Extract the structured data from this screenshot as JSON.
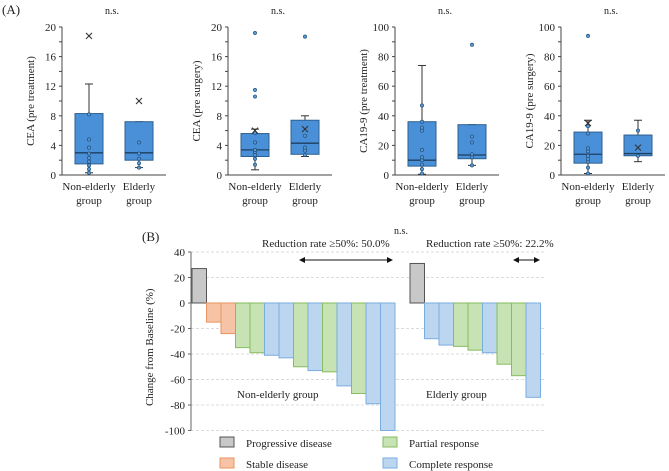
{
  "panel_a_label": "(A)",
  "panel_b_label": "(B)",
  "colors": {
    "box_fill": "#4a90d9",
    "box_stroke": "#2d5f8e",
    "point": "#3a78b8",
    "progressive": "#c8c8c8",
    "progressive_stroke": "#555555",
    "stable": "#f6c3a6",
    "stable_stroke": "#e8955f",
    "partial": "#c7e3b4",
    "partial_stroke": "#86bd5f",
    "complete": "#bcd6ef",
    "complete_stroke": "#7aaee0"
  },
  "chart_data": [
    {
      "type": "box",
      "title": "n.s.",
      "ylabel": "CEA (pre treatment)",
      "ylim": [
        0,
        20
      ],
      "yticks": [
        0,
        4,
        8,
        12,
        16,
        20
      ],
      "categories": [
        "Non-elderly group",
        "Elderly group"
      ],
      "category_lines": [
        [
          "Non-elderly",
          "group"
        ],
        [
          "Elderly",
          "group"
        ]
      ],
      "boxes": [
        {
          "min": 0.3,
          "q1": 1.5,
          "median": 3.0,
          "q3": 8.3,
          "max": 12.3,
          "mean": 18.8,
          "points": [
            0.3,
            0.8,
            1.3,
            1.8,
            2.3,
            2.9,
            3.7,
            4.8,
            8.2
          ]
        },
        {
          "min": 1.0,
          "q1": 2.0,
          "median": 3.0,
          "q3": 7.2,
          "max": 7.2,
          "mean": 10.0,
          "points": [
            1.0,
            1.6,
            2.2,
            2.9,
            4.4
          ]
        }
      ]
    },
    {
      "type": "box",
      "title": "n.s.",
      "ylabel": "CEA (pre surgery)",
      "ylim": [
        0,
        20
      ],
      "yticks": [
        0,
        4,
        8,
        12,
        16,
        20
      ],
      "categories": [
        "Non-elderly group",
        "Elderly group"
      ],
      "category_lines": [
        [
          "Non-elderly",
          "group"
        ],
        [
          "Elderly",
          "group"
        ]
      ],
      "boxes": [
        {
          "min": 0.7,
          "q1": 2.5,
          "median": 3.4,
          "q3": 5.6,
          "max": 6.2,
          "mean": 6.0,
          "points": [
            1.4,
            2.2,
            2.7,
            3.1,
            3.4,
            4.4,
            5.7,
            10.6,
            11.5,
            19.2
          ]
        },
        {
          "min": 2.5,
          "q1": 2.8,
          "median": 4.3,
          "q3": 7.4,
          "max": 8.0,
          "mean": 6.2,
          "points": [
            2.7,
            3.3,
            3.7,
            5.3,
            18.7
          ]
        }
      ]
    },
    {
      "type": "box",
      "title": "n.s.",
      "ylabel": "CA19-9 (pre treatment)",
      "ylim": [
        0,
        100
      ],
      "yticks": [
        0,
        20,
        40,
        60,
        80,
        100
      ],
      "categories": [
        "Non-elderly group",
        "Elderly group"
      ],
      "category_lines": [
        [
          "Non-elderly",
          "group"
        ],
        [
          "Elderly",
          "group"
        ]
      ],
      "boxes": [
        {
          "min": 0.5,
          "q1": 6,
          "median": 10,
          "q3": 36,
          "max": 74,
          "mean": null,
          "points": [
            1,
            4,
            7,
            10,
            12,
            17,
            30,
            32,
            36,
            47
          ]
        },
        {
          "min": 6.5,
          "q1": 11,
          "median": 13.5,
          "q3": 34,
          "max": 34,
          "mean": null,
          "points": [
            6.5,
            12,
            14,
            22,
            26,
            88
          ]
        }
      ]
    },
    {
      "type": "box",
      "title": "n.s.",
      "ylabel": "CA19-9 (pre surgery)",
      "ylim": [
        0,
        100
      ],
      "yticks": [
        0,
        20,
        40,
        60,
        80,
        100
      ],
      "categories": [
        "Non-elderly group",
        "Elderly group"
      ],
      "category_lines": [
        [
          "Non-elderly",
          "group"
        ],
        [
          "Elderly",
          "group"
        ]
      ],
      "boxes": [
        {
          "min": 1,
          "q1": 8,
          "median": 14,
          "q3": 29,
          "max": 37,
          "mean": 35,
          "points": [
            1,
            5,
            9,
            11,
            13,
            16,
            18,
            28,
            33,
            94
          ]
        },
        {
          "min": 9,
          "q1": 13,
          "median": 14.5,
          "q3": 27,
          "max": 37,
          "mean": 18.5,
          "points": [
            13,
            30
          ]
        }
      ]
    },
    {
      "type": "bar",
      "subtype": "waterfall",
      "title": "n.s.",
      "ylabel": "Change from Baseline (%)",
      "ylim": [
        -100,
        40
      ],
      "yticks": [
        40,
        20,
        0,
        -20,
        -40,
        -60,
        -80,
        -100
      ],
      "grid": true,
      "groups": [
        {
          "name": "Non-elderly group",
          "annotation": "Reduction rate ≥50%: 50.0%",
          "values": [
            27,
            -15,
            -24,
            -35,
            -39,
            -41,
            -43,
            -50,
            -53,
            -54,
            -65,
            -71,
            -79,
            -100
          ],
          "responses": [
            "PD",
            "SD",
            "SD",
            "PR",
            "PR",
            "CR",
            "CR",
            "PR",
            "CR",
            "PR",
            "CR",
            "PR",
            "CR",
            "CR"
          ]
        },
        {
          "name": "Elderly group",
          "annotation": "Reduction rate ≥50%: 22.2%",
          "values": [
            31,
            -28,
            -33,
            -34,
            -37,
            -39,
            -48,
            -57,
            -74
          ],
          "responses": [
            "PD",
            "CR",
            "CR",
            "PR",
            "PR",
            "CR",
            "PR",
            "PR",
            "CR"
          ]
        }
      ],
      "legend": [
        {
          "key": "PD",
          "label": "Progressive disease"
        },
        {
          "key": "SD",
          "label": "Stable disease"
        },
        {
          "key": "PR",
          "label": "Partial response"
        },
        {
          "key": "CR",
          "label": "Complete response"
        }
      ],
      "legend_position": "bottom"
    }
  ]
}
